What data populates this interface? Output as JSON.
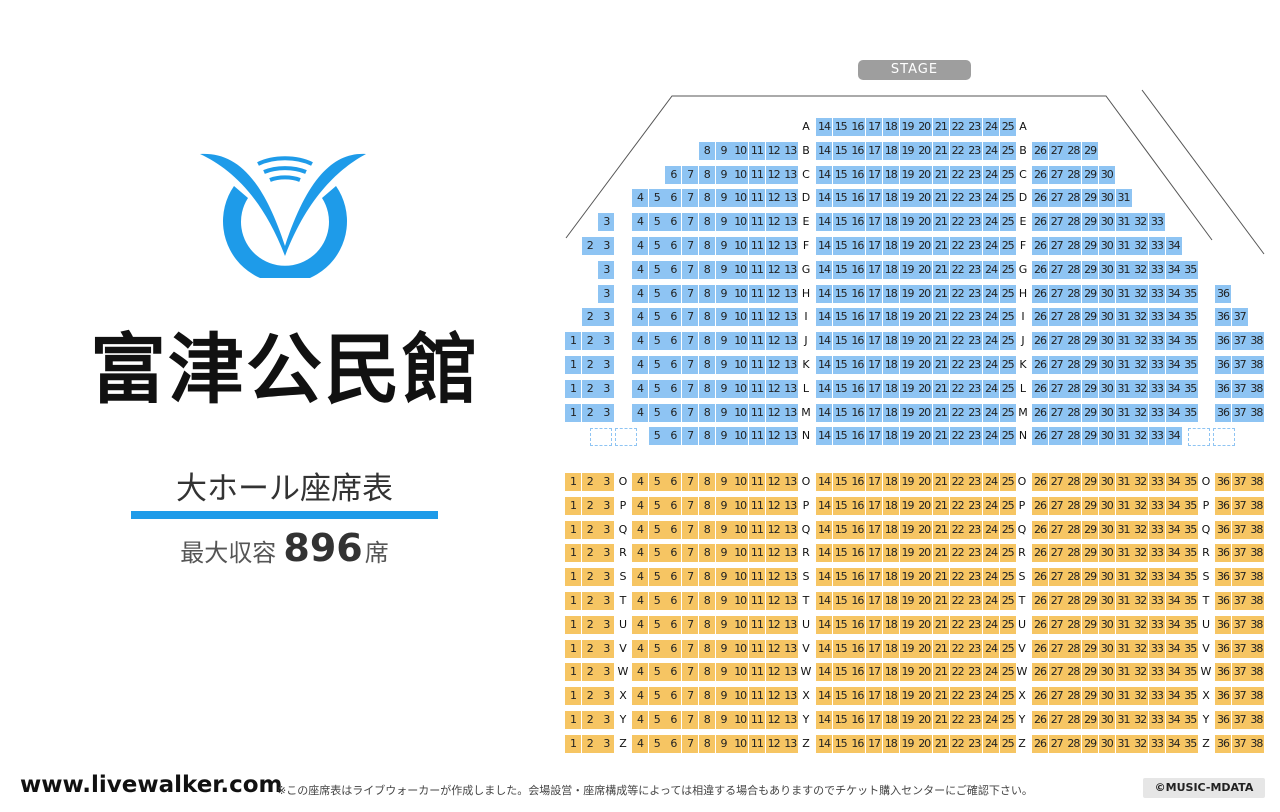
{
  "venue": {
    "name": "富津公民館",
    "hall_name": "大ホール座席表",
    "capacity_label": "最大収容",
    "capacity_number": "896",
    "capacity_unit": "席",
    "logo_icon": "venue-logo-icon",
    "brand_color": "#1e9be9"
  },
  "seat_map": {
    "stage_label": "STAGE",
    "colors": {
      "upper": "#8ec4f3",
      "lower": "#f6c563"
    },
    "upper_rows": [
      {
        "row": "A",
        "left": [],
        "center": [
          14,
          25
        ],
        "right": []
      },
      {
        "row": "B",
        "left": [
          8,
          13
        ],
        "center": [
          14,
          25
        ],
        "right": [
          26,
          29
        ]
      },
      {
        "row": "C",
        "left": [
          6,
          13
        ],
        "center": [
          14,
          25
        ],
        "right": [
          26,
          30
        ]
      },
      {
        "row": "D",
        "left": [
          4,
          13
        ],
        "center": [
          14,
          25
        ],
        "right": [
          26,
          31
        ]
      },
      {
        "row": "E",
        "left": [
          3,
          13
        ],
        "center": [
          14,
          25
        ],
        "right": [
          26,
          33
        ]
      },
      {
        "row": "F",
        "left": [
          2,
          13
        ],
        "center": [
          14,
          25
        ],
        "right": [
          26,
          34
        ]
      },
      {
        "row": "G",
        "left": [
          3,
          13
        ],
        "center": [
          14,
          25
        ],
        "right": [
          26,
          35
        ]
      },
      {
        "row": "H",
        "left": [
          3,
          13
        ],
        "center": [
          14,
          25
        ],
        "right": [
          26,
          36
        ]
      },
      {
        "row": "I",
        "left": [
          2,
          13
        ],
        "center": [
          14,
          25
        ],
        "right": [
          26,
          37
        ]
      },
      {
        "row": "J",
        "left": [
          1,
          13
        ],
        "center": [
          14,
          25
        ],
        "right": [
          26,
          38
        ]
      },
      {
        "row": "K",
        "left": [
          1,
          13
        ],
        "center": [
          14,
          25
        ],
        "right": [
          26,
          38
        ]
      },
      {
        "row": "L",
        "left": [
          1,
          13
        ],
        "center": [
          14,
          25
        ],
        "right": [
          26,
          38
        ]
      },
      {
        "row": "M",
        "left": [
          1,
          13
        ],
        "center": [
          14,
          25
        ],
        "right": [
          26,
          38
        ]
      },
      {
        "row": "N",
        "left": [
          5,
          13
        ],
        "center": [
          14,
          25
        ],
        "right": [
          26,
          34
        ],
        "wheelchair_spaces": 4
      }
    ],
    "lower_rows": [
      "O",
      "P",
      "Q",
      "R",
      "S",
      "T",
      "U",
      "V",
      "W",
      "X",
      "Y",
      "Z"
    ],
    "lower_blocks": {
      "far_left": [
        1,
        3
      ],
      "left": [
        4,
        13
      ],
      "center": [
        14,
        25
      ],
      "right": [
        26,
        35
      ],
      "far_right": [
        36,
        38
      ]
    }
  },
  "footer": {
    "site_url": "www.livewalker.com",
    "note": "※この座席表はライブウォーカーが作成しました。会場設営・座席構成等によっては相違する場合もありますのでチケット購入センターにご確認下さい。",
    "copyright": "©MUSIC-MDATA"
  }
}
